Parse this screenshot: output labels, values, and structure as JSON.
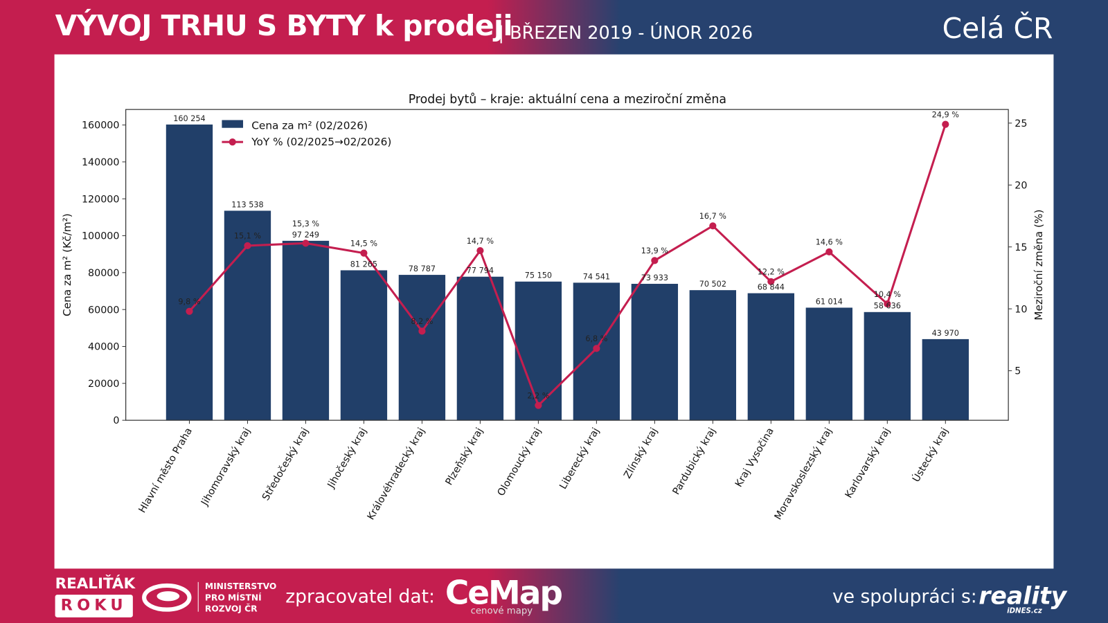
{
  "header": {
    "title": "VÝVOJ TRHU S BYTY k prodeji",
    "subtitle": "| BŘEZEN 2019 - ÚNOR 2026",
    "region": "Celá ČR"
  },
  "footer": {
    "award_line1": "REALIŤÁK",
    "award_line2": "ROKU",
    "ministry": [
      "MINISTERSTVO",
      "PRO MÍSTNÍ",
      "ROZVOJ ČR"
    ],
    "data_processor_label": "zpracovatel dat:",
    "cemap_logo": "CeMap",
    "cemap_tagline": "cenové mapy",
    "partner_label": "ve spolupráci s:",
    "reality_logo": "reality",
    "reality_sub": "iDNES.cz"
  },
  "colors": {
    "bar": "#213f69",
    "line": "#c41e4f",
    "accent_red": "#c41e4f",
    "accent_navy": "#27426f"
  },
  "chart_data": {
    "type": "bar+line",
    "title": "Prodej bytů – kraje: aktuální cena a meziroční změna",
    "ylabel": "Cena za m² (Kč/m²)",
    "y2label": "Meziroční změna (%)",
    "ylim": [
      0,
      168400
    ],
    "y2lim": [
      1.0,
      26.1
    ],
    "yticks": [
      0,
      20000,
      40000,
      60000,
      80000,
      100000,
      120000,
      140000,
      160000
    ],
    "y2ticks": [
      5,
      10,
      15,
      20,
      25
    ],
    "legend_position": "top-left",
    "grid": false,
    "categories": [
      "Hlavní město Praha",
      "Jihomoravský kraj",
      "Středočeský kraj",
      "Jihočeský kraj",
      "Královéhradecký kraj",
      "Plzeňský kraj",
      "Olomoucký kraj",
      "Liberecký kraj",
      "Zlínský kraj",
      "Pardubický kraj",
      "Kraj Vysočina",
      "Moravskoslezský kraj",
      "Karlovarský kraj",
      "Ústecký kraj"
    ],
    "series": [
      {
        "name": "Cena za m² (02/2026)",
        "type": "bar",
        "axis": "left",
        "values": [
          160254,
          113538,
          97249,
          81265,
          78787,
          77794,
          75150,
          74541,
          73933,
          70502,
          68844,
          61014,
          58636,
          43970
        ],
        "labels": [
          "160 254",
          "113 538",
          "97 249",
          "81 265",
          "78 787",
          "77 794",
          "75 150",
          "74 541",
          "73 933",
          "70 502",
          "68 844",
          "61 014",
          "58 636",
          "43 970"
        ]
      },
      {
        "name": "YoY % (02/2025→02/2026)",
        "type": "line",
        "axis": "right",
        "values": [
          9.8,
          15.1,
          15.3,
          14.5,
          8.2,
          14.7,
          2.2,
          6.8,
          13.9,
          16.7,
          12.2,
          14.6,
          10.4,
          24.9
        ],
        "labels": [
          "9,8 %",
          "15,1 %",
          "15,3 %",
          "14,5 %",
          "8,2 %",
          "14,7 %",
          "2,2 %",
          "6,8 %",
          "13,9 %",
          "16,7 %",
          "12,2 %",
          "14,6 %",
          "10,4 %",
          "24,9 %"
        ]
      }
    ]
  }
}
